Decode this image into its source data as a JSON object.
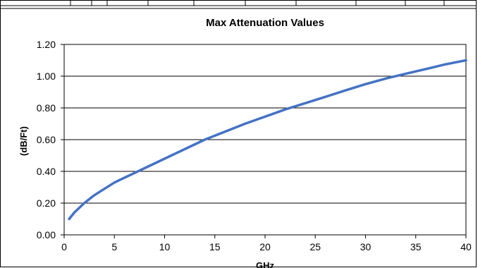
{
  "chart_data": {
    "type": "line",
    "title": "Max  Attenuation Values",
    "xlabel": "GHz",
    "ylabel": "(dB/Ft)",
    "xlim": [
      0,
      40
    ],
    "ylim": [
      0.0,
      1.2
    ],
    "x_ticks": [
      "0",
      "5",
      "10",
      "15",
      "20",
      "25",
      "30",
      "35",
      "40"
    ],
    "y_ticks": [
      "0.00",
      "0.20",
      "0.40",
      "0.60",
      "0.80",
      "1.00",
      "1.20"
    ],
    "grid": "horizontal",
    "legend": "none",
    "colors": {
      "line": "#4472c4",
      "grid": "#000000",
      "border": "#000000"
    },
    "series": [
      {
        "x": [
          0.5,
          1,
          2,
          3,
          4,
          5,
          6,
          7,
          8,
          10,
          12,
          14,
          16,
          18,
          20,
          22,
          24,
          26,
          28,
          30,
          32,
          34,
          36,
          38,
          40
        ],
        "values": [
          0.1,
          0.14,
          0.2,
          0.25,
          0.29,
          0.33,
          0.36,
          0.39,
          0.42,
          0.48,
          0.54,
          0.6,
          0.65,
          0.7,
          0.745,
          0.79,
          0.83,
          0.87,
          0.91,
          0.95,
          0.985,
          1.015,
          1.045,
          1.075,
          1.1
        ]
      }
    ]
  }
}
